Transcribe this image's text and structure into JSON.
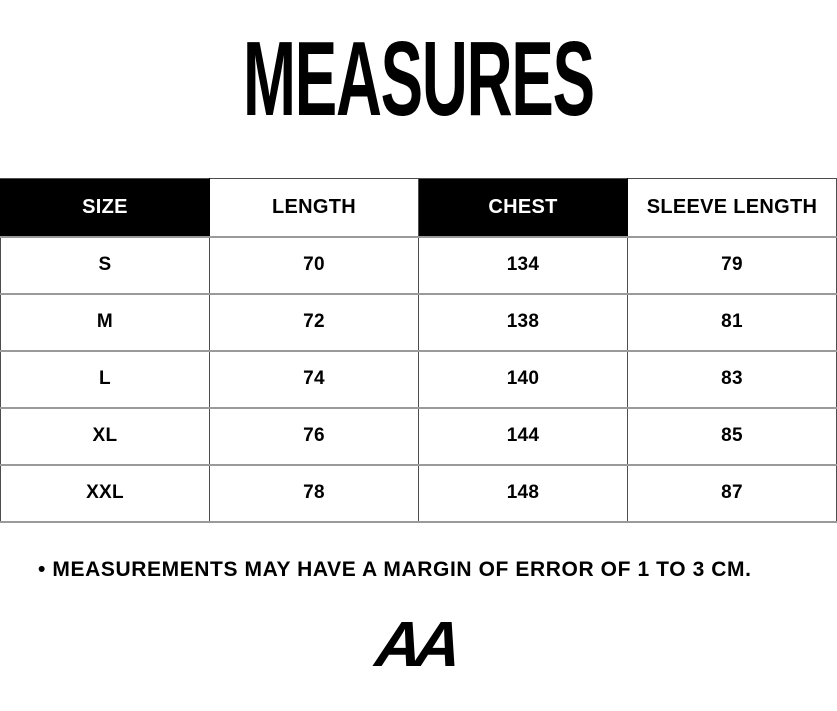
{
  "title": "MEASURES",
  "table": {
    "columns": [
      {
        "label": "SIZE",
        "variant": "dark"
      },
      {
        "label": "LENGTH",
        "variant": "light"
      },
      {
        "label": "CHEST",
        "variant": "dark"
      },
      {
        "label": "SLEEVE LENGTH",
        "variant": "light"
      }
    ],
    "rows": [
      [
        "S",
        "70",
        "134",
        "79"
      ],
      [
        "M",
        "72",
        "138",
        "81"
      ],
      [
        "L",
        "74",
        "140",
        "83"
      ],
      [
        "XL",
        "76",
        "144",
        "85"
      ],
      [
        "XXL",
        "78",
        "148",
        "87"
      ]
    ]
  },
  "note": "• MEASUREMENTS MAY HAVE A MARGIN OF ERROR OF 1 TO 3 CM.",
  "logo": {
    "text": "AA"
  },
  "colors": {
    "ink": "#000000",
    "background": "#ffffff",
    "header_dark_bg": "#000000",
    "header_dark_text": "#ffffff",
    "grid_horizontal": "#9a9a9a",
    "grid_vertical": "#4d4d4d"
  }
}
